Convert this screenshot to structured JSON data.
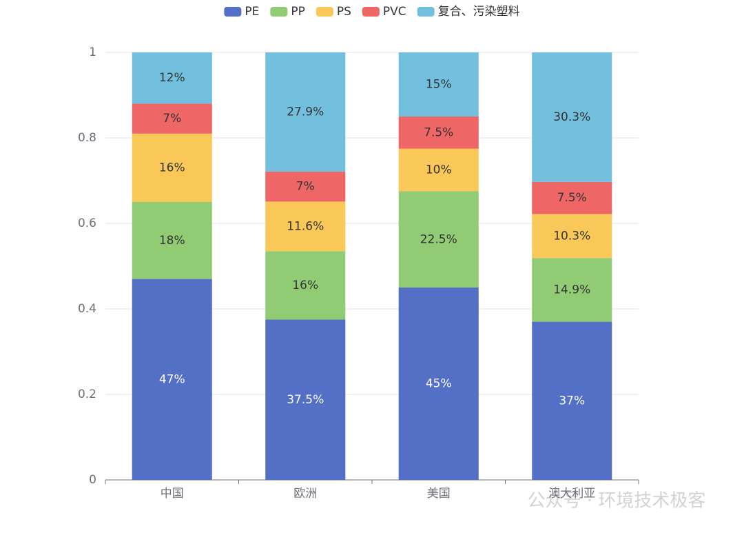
{
  "chart_data": {
    "type": "stacked_bar",
    "categories": [
      "中国",
      "欧洲",
      "美国",
      "澳大利亚"
    ],
    "series": [
      {
        "name": "PE",
        "color": "#5470c6",
        "values": [
          0.47,
          0.375,
          0.45,
          0.37
        ],
        "value_labels": [
          "47%",
          "37.5%",
          "45%",
          "37%"
        ]
      },
      {
        "name": "PP",
        "color": "#91cc75",
        "values": [
          0.18,
          0.16,
          0.225,
          0.149
        ],
        "value_labels": [
          "18%",
          "16%",
          "22.5%",
          "14.9%"
        ]
      },
      {
        "name": "PS",
        "color": "#fac858",
        "values": [
          0.16,
          0.116,
          0.1,
          0.103
        ],
        "value_labels": [
          "16%",
          "11.6%",
          "10%",
          "10.3%"
        ]
      },
      {
        "name": "PVC",
        "color": "#ee6666",
        "values": [
          0.07,
          0.07,
          0.075,
          0.075
        ],
        "value_labels": [
          "7%",
          "7%",
          "7.5%",
          "7.5%"
        ]
      },
      {
        "name": "复合、污染塑料",
        "color": "#73c0de",
        "values": [
          0.12,
          0.279,
          0.15,
          0.303
        ],
        "value_labels": [
          "12%",
          "27.9%",
          "15%",
          "30.3%"
        ]
      }
    ],
    "ylim": [
      0,
      1
    ],
    "yticks": [
      0,
      0.2,
      0.4,
      0.6,
      0.8,
      1
    ],
    "grid": true,
    "legend": "top",
    "watermark": "公众号 · 环境技术极客"
  }
}
